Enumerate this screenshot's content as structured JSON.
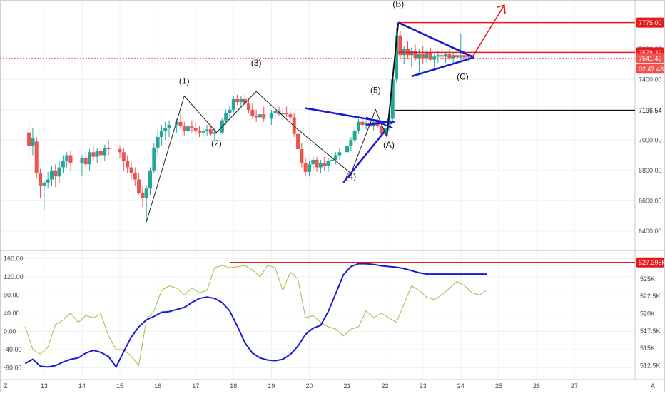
{
  "chart_data": [
    {
      "type": "candlestick",
      "title": "",
      "ylim": [
        6300,
        7900
      ],
      "y_ticks": [
        "7600.00",
        "7400.00",
        "7200.00",
        "7000.00",
        "6800.00",
        "6600.00",
        "6400.00"
      ],
      "y_tick_values": [
        7600,
        7400,
        7200,
        7000,
        6800,
        6600,
        6400
      ],
      "x_ticks": [
        "13",
        "14",
        "15",
        "16",
        "17",
        "18",
        "19",
        "20",
        "21",
        "22",
        "23",
        "24",
        "25",
        "26",
        "27"
      ],
      "x_tick_values": [
        13,
        14,
        15,
        16,
        17,
        18,
        19,
        20,
        21,
        22,
        23,
        24,
        25,
        26,
        27
      ],
      "xlim": [
        12.4,
        28.6
      ],
      "colors": {
        "up": "#26a69a",
        "down": "#ef5350",
        "pattern": "#1919d6",
        "target": "#e8191c",
        "path": "#222222"
      },
      "candles": [
        [
          12.6,
          7050,
          7120,
          6850,
          6960
        ],
        [
          12.7,
          6960,
          7080,
          6900,
          7010
        ],
        [
          12.8,
          6990,
          7020,
          6750,
          6780
        ],
        [
          12.9,
          6780,
          6810,
          6620,
          6700
        ],
        [
          13.0,
          6700,
          6730,
          6540,
          6720
        ],
        [
          13.1,
          6720,
          6790,
          6680,
          6740
        ],
        [
          13.2,
          6740,
          6830,
          6700,
          6800
        ],
        [
          13.3,
          6800,
          6840,
          6690,
          6760
        ],
        [
          13.4,
          6760,
          6860,
          6720,
          6820
        ],
        [
          13.5,
          6820,
          6900,
          6780,
          6860
        ],
        [
          13.6,
          6860,
          6920,
          6820,
          6900
        ],
        [
          13.7,
          6900,
          6930,
          6800,
          6850
        ],
        [
          14.0,
          6850,
          6900,
          6760,
          6880
        ],
        [
          14.1,
          6880,
          6920,
          6820,
          6840
        ],
        [
          14.2,
          6840,
          6940,
          6800,
          6920
        ],
        [
          14.3,
          6920,
          6960,
          6860,
          6890
        ],
        [
          14.4,
          6890,
          6950,
          6850,
          6930
        ],
        [
          14.5,
          6930,
          6980,
          6880,
          6900
        ],
        [
          14.6,
          6900,
          6970,
          6860,
          6950
        ],
        [
          14.7,
          6950,
          7000,
          6900,
          6940
        ],
        [
          15.0,
          6940,
          6960,
          6880,
          6920
        ],
        [
          15.1,
          6920,
          6950,
          6800,
          6860
        ],
        [
          15.2,
          6860,
          6900,
          6780,
          6820
        ],
        [
          15.3,
          6820,
          6860,
          6740,
          6780
        ],
        [
          15.4,
          6780,
          6820,
          6700,
          6740
        ],
        [
          15.5,
          6740,
          6780,
          6640,
          6650
        ],
        [
          15.6,
          6650,
          6700,
          6560,
          6620
        ],
        [
          15.7,
          6620,
          6700,
          6460,
          6680
        ],
        [
          15.8,
          6680,
          6820,
          6640,
          6800
        ],
        [
          15.9,
          6800,
          6980,
          6780,
          6950
        ],
        [
          16.0,
          6950,
          7060,
          6900,
          7020
        ],
        [
          16.1,
          7020,
          7100,
          6960,
          7060
        ],
        [
          16.2,
          7060,
          7120,
          7000,
          7080
        ],
        [
          16.3,
          7080,
          7130,
          7020,
          7100
        ],
        [
          16.5,
          7100,
          7140,
          7050,
          7120
        ],
        [
          16.6,
          7120,
          7180,
          7070,
          7090
        ],
        [
          16.7,
          7090,
          7120,
          7030,
          7060
        ],
        [
          16.8,
          7060,
          7110,
          7020,
          7090
        ],
        [
          16.9,
          7090,
          7130,
          7050,
          7080
        ],
        [
          17.0,
          7080,
          7120,
          7040,
          7060
        ],
        [
          17.1,
          7060,
          7090,
          7020,
          7050
        ],
        [
          17.2,
          7050,
          7080,
          7020,
          7060
        ],
        [
          17.3,
          7060,
          7100,
          7030,
          7070
        ],
        [
          17.4,
          7070,
          7100,
          7030,
          7040
        ],
        [
          17.5,
          7040,
          7080,
          7000,
          7050
        ],
        [
          17.7,
          7050,
          7140,
          7040,
          7130
        ],
        [
          17.8,
          7130,
          7200,
          7100,
          7180
        ],
        [
          17.9,
          7180,
          7230,
          7150,
          7200
        ],
        [
          18.0,
          7200,
          7290,
          7180,
          7270
        ],
        [
          18.1,
          7270,
          7300,
          7230,
          7250
        ],
        [
          18.2,
          7250,
          7290,
          7220,
          7270
        ],
        [
          18.3,
          7270,
          7300,
          7230,
          7240
        ],
        [
          18.4,
          7240,
          7270,
          7180,
          7200
        ],
        [
          18.5,
          7200,
          7240,
          7140,
          7160
        ],
        [
          18.6,
          7160,
          7200,
          7120,
          7150
        ],
        [
          18.7,
          7150,
          7190,
          7100,
          7170
        ],
        [
          18.8,
          7170,
          7220,
          7120,
          7140
        ],
        [
          19.0,
          7140,
          7200,
          7100,
          7180
        ],
        [
          19.1,
          7180,
          7220,
          7150,
          7190
        ],
        [
          19.2,
          7190,
          7220,
          7160,
          7170
        ],
        [
          19.3,
          7170,
          7210,
          7130,
          7180
        ],
        [
          19.4,
          7180,
          7220,
          7150,
          7170
        ],
        [
          19.5,
          7170,
          7190,
          7130,
          7150
        ],
        [
          19.6,
          7150,
          7180,
          7020,
          7040
        ],
        [
          19.7,
          7040,
          7060,
          6920,
          6940
        ],
        [
          19.8,
          6940,
          6980,
          6820,
          6850
        ],
        [
          19.9,
          6850,
          6880,
          6760,
          6790
        ],
        [
          20.0,
          6790,
          6860,
          6760,
          6840
        ],
        [
          20.1,
          6840,
          6900,
          6800,
          6870
        ],
        [
          20.2,
          6870,
          6890,
          6790,
          6820
        ],
        [
          20.3,
          6820,
          6870,
          6780,
          6850
        ],
        [
          20.4,
          6850,
          6890,
          6800,
          6830
        ],
        [
          20.5,
          6830,
          6880,
          6790,
          6860
        ],
        [
          20.6,
          6860,
          6900,
          6830,
          6870
        ],
        [
          20.7,
          6870,
          6920,
          6840,
          6900
        ],
        [
          20.8,
          6900,
          6950,
          6870,
          6920
        ],
        [
          21.0,
          6920,
          6980,
          6890,
          6960
        ],
        [
          21.1,
          6960,
          7020,
          6930,
          7000
        ],
        [
          21.2,
          7000,
          7080,
          6980,
          7060
        ],
        [
          21.3,
          7060,
          7140,
          7040,
          7120
        ],
        [
          21.4,
          7120,
          7150,
          7080,
          7100
        ],
        [
          21.5,
          7100,
          7130,
          7070,
          7110
        ],
        [
          21.6,
          7110,
          7140,
          7080,
          7090
        ],
        [
          21.7,
          7090,
          7130,
          7060,
          7120
        ],
        [
          21.8,
          7120,
          7140,
          7080,
          7090
        ],
        [
          21.9,
          7090,
          7110,
          7020,
          7040
        ],
        [
          22.0,
          7040,
          7090,
          7030,
          7080
        ],
        [
          22.1,
          7080,
          7150,
          7060,
          7140
        ],
        [
          22.2,
          7140,
          7420,
          7120,
          7400
        ],
        [
          22.3,
          7400,
          7740,
          7380,
          7690
        ],
        [
          22.4,
          7690,
          7720,
          7540,
          7560
        ],
        [
          22.5,
          7560,
          7620,
          7500,
          7600
        ],
        [
          22.6,
          7600,
          7650,
          7540,
          7560
        ],
        [
          22.7,
          7560,
          7610,
          7480,
          7590
        ],
        [
          22.8,
          7590,
          7630,
          7520,
          7540
        ],
        [
          22.9,
          7540,
          7600,
          7440,
          7570
        ],
        [
          23.0,
          7570,
          7620,
          7500,
          7540
        ],
        [
          23.1,
          7540,
          7600,
          7510,
          7580
        ],
        [
          23.2,
          7580,
          7610,
          7520,
          7530
        ],
        [
          23.3,
          7530,
          7570,
          7480,
          7550
        ],
        [
          23.4,
          7550,
          7590,
          7510,
          7560
        ],
        [
          23.5,
          7560,
          7600,
          7530,
          7550
        ],
        [
          23.6,
          7550,
          7580,
          7510,
          7570
        ],
        [
          23.7,
          7570,
          7600,
          7530,
          7540
        ],
        [
          23.8,
          7540,
          7580,
          7500,
          7560
        ],
        [
          23.9,
          7560,
          7600,
          7520,
          7545
        ],
        [
          24.0,
          7545,
          7700,
          7510,
          7560
        ],
        [
          24.1,
          7560,
          7590,
          7520,
          7545
        ],
        [
          24.2,
          7545,
          7570,
          7520,
          7550
        ],
        [
          24.3,
          7550,
          7570,
          7530,
          7541
        ]
      ],
      "wave_labels": [
        {
          "text": "(1)",
          "x": 16.7,
          "y": 7370
        },
        {
          "text": "(2)",
          "x": 17.55,
          "y": 6960
        },
        {
          "text": "(3)",
          "x": 18.6,
          "y": 7490
        },
        {
          "text": "(4)",
          "x": 21.1,
          "y": 6740
        },
        {
          "text": "(5)",
          "x": 21.75,
          "y": 7310
        },
        {
          "text": "(A)",
          "x": 22.1,
          "y": 6950
        },
        {
          "text": "(B)",
          "x": 22.35,
          "y": 7880
        },
        {
          "text": "(C)",
          "x": 24.05,
          "y": 7400
        }
      ],
      "price_levels": [
        {
          "label": "7775.00",
          "value": 7775,
          "color": "#e8191c"
        },
        {
          "label": "7578.39",
          "value": 7578,
          "color": "#e8191c"
        },
        {
          "label": "7196.54",
          "value": 7196,
          "color": "#111111"
        }
      ],
      "current_price": {
        "label": "7541.49",
        "value": 7541
      },
      "countdown": {
        "label": "02:47:48"
      }
    },
    {
      "type": "line",
      "title": "",
      "ylim": [
        -95,
        170
      ],
      "y_ticks": [
        "160.00",
        "120.00",
        "80.00",
        "40.00",
        "0.00",
        "-40.00",
        "-80.00"
      ],
      "y_tick_values": [
        160,
        120,
        80,
        40,
        0,
        -40,
        -80
      ],
      "right_ticks": [
        "525K",
        "522.5K",
        "520K",
        "517.5K",
        "515K",
        "512.5K"
      ],
      "right_tick_values": [
        525000,
        522500,
        520000,
        517500,
        515000,
        512500
      ],
      "right_ylim": [
        511200,
        528600
      ],
      "right_level": {
        "label": "527.395K",
        "value": 527395
      },
      "series": [
        {
          "color": "#a8b84a",
          "axis": "left",
          "x": [
            12.5,
            12.7,
            12.9,
            13.1,
            13.3,
            13.5,
            13.7,
            13.9,
            14.1,
            14.3,
            14.5,
            14.7,
            14.9,
            15.1,
            15.3,
            15.5,
            15.7,
            15.9,
            16.1,
            16.3,
            16.5,
            16.7,
            16.9,
            17.1,
            17.3,
            17.5,
            17.7,
            17.9,
            18.1,
            18.3,
            18.5,
            18.7,
            18.9,
            19.1,
            19.3,
            19.5,
            19.7,
            19.9,
            20.1,
            20.3,
            20.5,
            20.7,
            20.9,
            21.1,
            21.3,
            21.5,
            21.7,
            21.9,
            22.1,
            22.3,
            22.5,
            22.7,
            22.9,
            23.1,
            23.3,
            23.5,
            23.7,
            23.9,
            24.1,
            24.3,
            24.5,
            24.7
          ],
          "values": [
            10,
            -40,
            -50,
            -35,
            15,
            25,
            40,
            20,
            35,
            30,
            38,
            -10,
            -40,
            -40,
            -55,
            -75,
            25,
            45,
            90,
            100,
            95,
            80,
            95,
            85,
            90,
            140,
            145,
            140,
            142,
            145,
            135,
            120,
            145,
            140,
            90,
            130,
            115,
            30,
            35,
            20,
            10,
            5,
            -10,
            5,
            10,
            45,
            30,
            40,
            30,
            20,
            60,
            100,
            90,
            75,
            70,
            80,
            95,
            110,
            100,
            85,
            80,
            92
          ]
        },
        {
          "color": "#1919d6",
          "axis": "right",
          "x": [
            12.5,
            12.7,
            12.9,
            13.1,
            13.3,
            13.5,
            13.7,
            13.9,
            14.1,
            14.3,
            14.5,
            14.7,
            14.9,
            15.1,
            15.3,
            15.5,
            15.7,
            15.9,
            16.1,
            16.3,
            16.5,
            16.7,
            16.9,
            17.1,
            17.3,
            17.5,
            17.7,
            17.9,
            18.1,
            18.3,
            18.5,
            18.7,
            18.9,
            19.1,
            19.3,
            19.5,
            19.7,
            19.9,
            20.1,
            20.3,
            20.5,
            20.7,
            20.9,
            21.1,
            21.3,
            21.5,
            21.7,
            21.9,
            22.1,
            22.3,
            22.5,
            22.7,
            22.9,
            23.1,
            23.3,
            23.5,
            23.7,
            23.9,
            24.1,
            24.3,
            24.5,
            24.7
          ],
          "values": [
            512800,
            513400,
            512400,
            512300,
            512500,
            513000,
            513400,
            513600,
            514300,
            514700,
            514400,
            513800,
            512300,
            514500,
            516600,
            518100,
            519100,
            519600,
            520200,
            520300,
            520600,
            520900,
            521600,
            522200,
            522400,
            522200,
            521600,
            520400,
            518200,
            515800,
            514300,
            513600,
            513300,
            513200,
            513400,
            514100,
            515300,
            517000,
            517900,
            518300,
            520300,
            522900,
            525600,
            526800,
            527200,
            527200,
            527100,
            526900,
            526800,
            526700,
            526500,
            526200,
            525900,
            525700,
            525700,
            525700,
            525700,
            525700,
            525700,
            525700,
            525700,
            525700
          ]
        }
      ]
    }
  ],
  "bottom_axis_labels": [
    "Z",
    "A"
  ]
}
